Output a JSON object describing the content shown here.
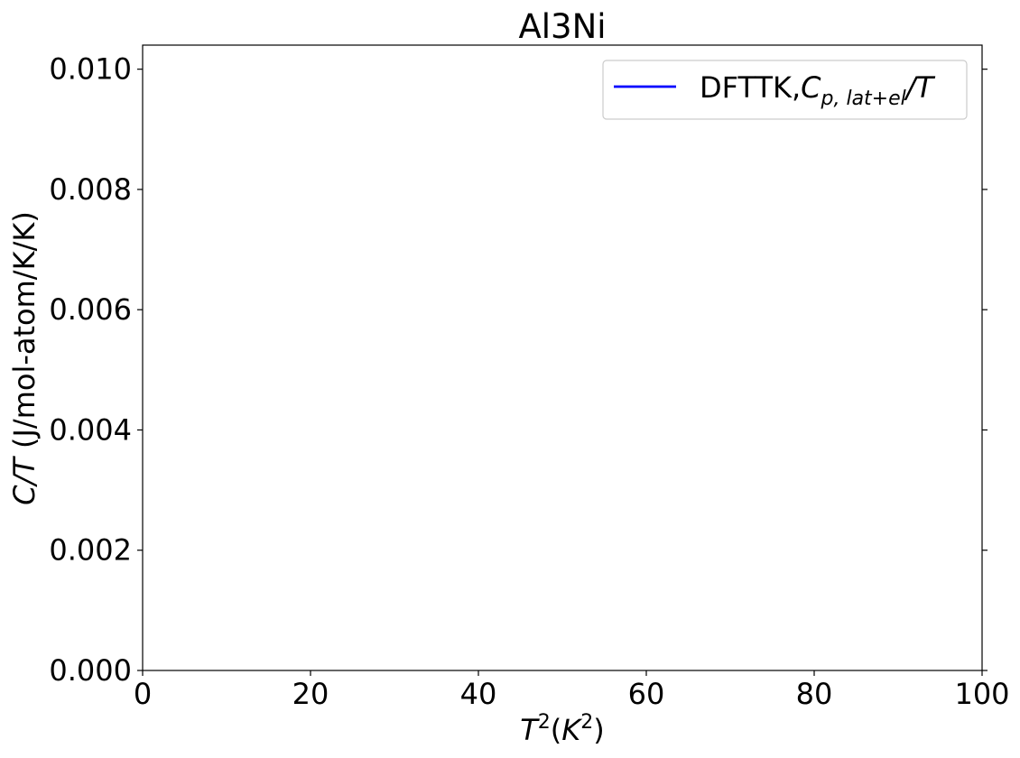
{
  "chart_data": {
    "type": "line",
    "title": "Al3Ni",
    "xlabel": {
      "base": "T",
      "sup": "2",
      "paren_open": "(",
      "unit_base": "K",
      "unit_sup": "2",
      "paren_close": ")"
    },
    "ylabel": {
      "math": "C/T",
      "text": " (J/mol-atom/K/K)"
    },
    "xlim": [
      0,
      100
    ],
    "ylim": [
      0,
      0.0104
    ],
    "x_ticks": [
      {
        "value": 0,
        "label": "0"
      },
      {
        "value": 20,
        "label": "20"
      },
      {
        "value": 40,
        "label": "40"
      },
      {
        "value": 60,
        "label": "60"
      },
      {
        "value": 80,
        "label": "80"
      },
      {
        "value": 100,
        "label": "100"
      }
    ],
    "y_ticks": [
      {
        "value": 0.0,
        "label": "0.000"
      },
      {
        "value": 0.002,
        "label": "0.002"
      },
      {
        "value": 0.004,
        "label": "0.004"
      },
      {
        "value": 0.006,
        "label": "0.006"
      },
      {
        "value": 0.008,
        "label": "0.008"
      },
      {
        "value": 0.01,
        "label": "0.010"
      }
    ],
    "grid": false,
    "legend_position": "top-right",
    "series": [
      {
        "legend_prefix": "DFTTK,",
        "legend_math_base": "C",
        "legend_math_sub": "p, lat+el",
        "legend_math_suffix": "/T",
        "color": "#0000ff",
        "x": [],
        "y": []
      }
    ]
  }
}
